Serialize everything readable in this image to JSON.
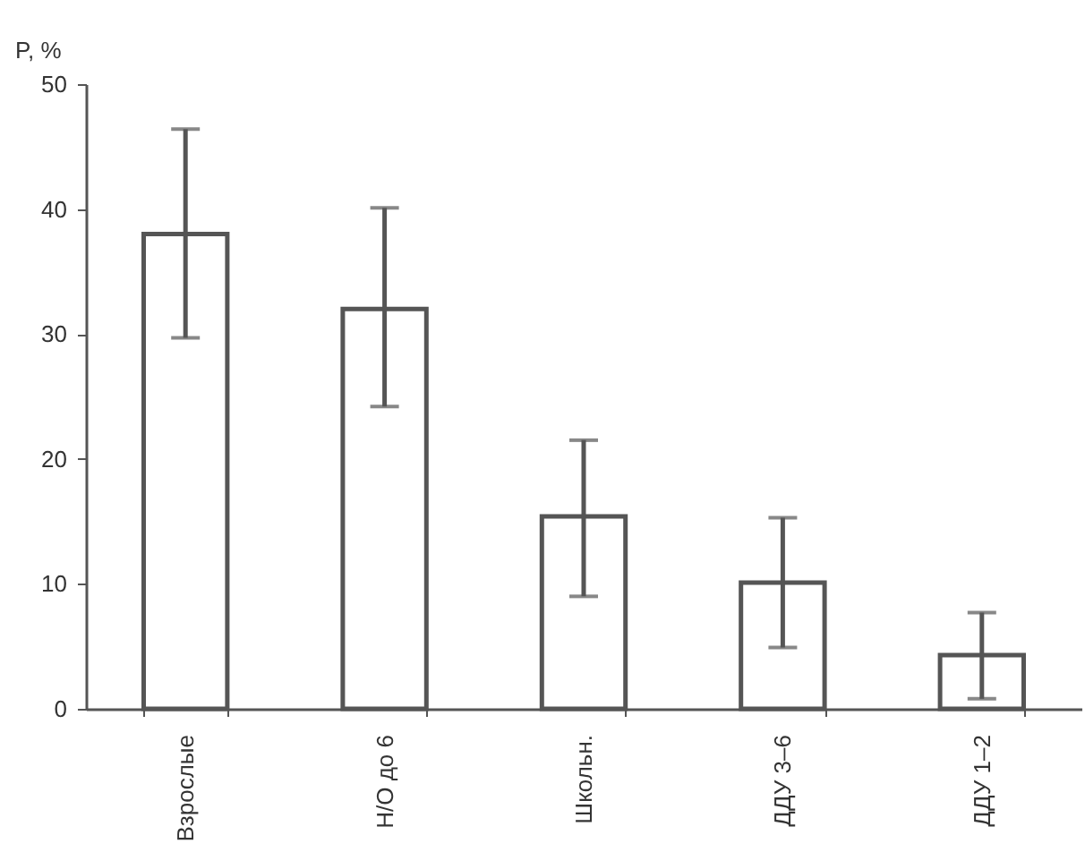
{
  "chart_data": {
    "type": "bar",
    "ylabel": "P, %",
    "categories": [
      "Взрослые",
      "Н/О до 6",
      "Школьн.",
      "ДДУ 3–6",
      "ДДУ 1–2"
    ],
    "values": [
      38,
      32,
      15.4,
      10.1,
      4.3
    ],
    "errors": [
      [
        29.7,
        46.4
      ],
      [
        24.2,
        40.1
      ],
      [
        9.0,
        21.5
      ],
      [
        4.9,
        15.3
      ],
      [
        0.8,
        7.7
      ]
    ],
    "color": "#ffffff",
    "ylim": [
      0,
      50
    ],
    "yticks": [
      0,
      10,
      20,
      30,
      40,
      50
    ]
  }
}
